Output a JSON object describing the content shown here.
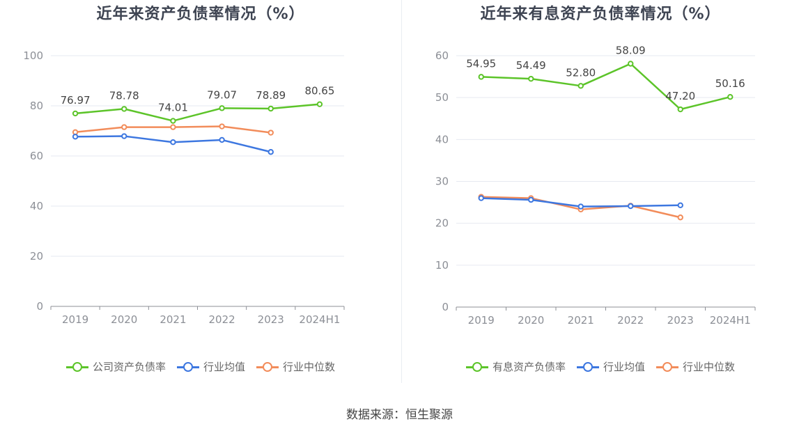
{
  "source": "数据来源：恒生聚源",
  "chart_data": [
    {
      "type": "line",
      "title": "近年来资产负债率情况（%）",
      "categories": [
        "2019",
        "2020",
        "2021",
        "2022",
        "2023",
        "2024H1"
      ],
      "ylim": [
        0,
        100
      ],
      "yticks": [
        0,
        20,
        40,
        60,
        80,
        100
      ],
      "legend_position": "bottom",
      "series": [
        {
          "name": "公司资产负债率",
          "color": "#5cc429",
          "values": [
            76.97,
            78.78,
            74.01,
            79.07,
            78.89,
            80.65
          ],
          "labels": true
        },
        {
          "name": "行业均值",
          "color": "#3d77e0",
          "values": [
            67.7,
            67.9,
            65.5,
            66.4,
            61.6,
            null
          ],
          "labels": false
        },
        {
          "name": "行业中位数",
          "color": "#f28c5a",
          "values": [
            69.5,
            71.5,
            71.5,
            71.8,
            69.3,
            null
          ],
          "labels": false
        }
      ]
    },
    {
      "type": "line",
      "title": "近年来有息资产负债率情况（%）",
      "categories": [
        "2019",
        "2020",
        "2021",
        "2022",
        "2023",
        "2024H1"
      ],
      "ylim": [
        0,
        60
      ],
      "yticks": [
        0,
        10,
        20,
        30,
        40,
        50,
        60
      ],
      "legend_position": "bottom",
      "series": [
        {
          "name": "有息资产负债率",
          "color": "#5cc429",
          "values": [
            54.95,
            54.49,
            52.8,
            58.09,
            47.2,
            50.16
          ],
          "labels": true
        },
        {
          "name": "行业均值",
          "color": "#3d77e0",
          "values": [
            26.0,
            25.6,
            24.0,
            24.1,
            24.3,
            null
          ],
          "labels": false
        },
        {
          "name": "行业中位数",
          "color": "#f28c5a",
          "values": [
            26.3,
            26.0,
            23.3,
            24.2,
            21.4,
            null
          ],
          "labels": false
        }
      ]
    }
  ]
}
